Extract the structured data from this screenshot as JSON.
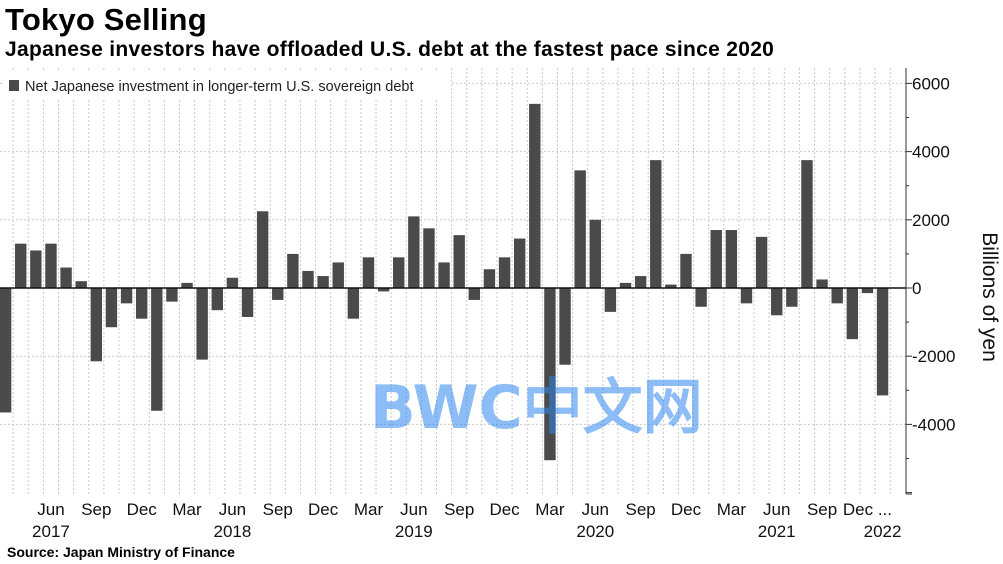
{
  "title": "Tokyo Selling",
  "subtitle": "Japanese investors have offloaded U.S. debt at the fastest pace since 2020",
  "source": "Source: Japan Ministry of Finance",
  "watermark": "BWC中文网",
  "colors": {
    "bar": "#4a4a4a",
    "grid": "#c8c8c8",
    "axis": "#333333"
  },
  "chart_data": {
    "type": "bar",
    "title": "Tokyo Selling",
    "subtitle": "Japanese investors have offloaded U.S. debt at the fastest pace since 2020",
    "ylabel": "Billions of yen",
    "ylim": [
      -6000,
      6000
    ],
    "yticks": [
      6000,
      4000,
      2000,
      0,
      -2000,
      -4000
    ],
    "grid": true,
    "legend_position": "top-left",
    "y_axis_side": "right",
    "series": [
      {
        "name": "Net Japanese investment in longer-term U.S. sovereign debt",
        "values": [
          -3650,
          1300,
          1100,
          1300,
          600,
          200,
          -2150,
          -1150,
          -450,
          -900,
          -3600,
          -400,
          150,
          -2100,
          -650,
          300,
          -850,
          2250,
          -350,
          1000,
          500,
          350,
          750,
          -900,
          900,
          -100,
          900,
          2100,
          1750,
          750,
          1550,
          -350,
          550,
          900,
          1450,
          5400,
          -5050,
          -2250,
          3450,
          2000,
          -700,
          150,
          350,
          3750,
          100,
          1000,
          -550,
          1700,
          1700,
          -450,
          1500,
          -800,
          -550,
          3750,
          250,
          -450,
          -1500,
          -150,
          -3150
        ]
      }
    ],
    "categories": [
      "Mar 2017",
      "Apr 2017",
      "May 2017",
      "Jun 2017",
      "Jul 2017",
      "Aug 2017",
      "Sep 2017",
      "Oct 2017",
      "Nov 2017",
      "Dec 2017",
      "Jan 2018",
      "Feb 2018",
      "Mar 2018",
      "Apr 2018",
      "May 2018",
      "Jun 2018",
      "Jul 2018",
      "Aug 2018",
      "Sep 2018",
      "Oct 2018",
      "Nov 2018",
      "Dec 2018",
      "Jan 2019",
      "Feb 2019",
      "Mar 2019",
      "Apr 2019",
      "May 2019",
      "Jun 2019",
      "Jul 2019",
      "Aug 2019",
      "Sep 2019",
      "Oct 2019",
      "Nov 2019",
      "Dec 2019",
      "Jan 2020",
      "Feb 2020",
      "Mar 2020",
      "Apr 2020",
      "May 2020",
      "Jun 2020",
      "Jul 2020",
      "Aug 2020",
      "Sep 2020",
      "Oct 2020",
      "Nov 2020",
      "Dec 2020",
      "Jan 2021",
      "Feb 2021",
      "Mar 2021",
      "Apr 2021",
      "May 2021",
      "Jun 2021",
      "Jul 2021",
      "Aug 2021",
      "Sep 2021",
      "Oct 2021",
      "Nov 2021",
      "Dec 2021",
      "Jan 2022"
    ],
    "x_tick_labels": [
      {
        "label": "Jun",
        "index": 3
      },
      {
        "label": "Sep",
        "index": 6
      },
      {
        "label": "Dec",
        "index": 9
      },
      {
        "label": "Mar",
        "index": 12
      },
      {
        "label": "Jun",
        "index": 15
      },
      {
        "label": "Sep",
        "index": 18
      },
      {
        "label": "Dec",
        "index": 21
      },
      {
        "label": "Mar",
        "index": 24
      },
      {
        "label": "Jun",
        "index": 27
      },
      {
        "label": "Sep",
        "index": 30
      },
      {
        "label": "Dec",
        "index": 33
      },
      {
        "label": "Mar",
        "index": 36
      },
      {
        "label": "Jun",
        "index": 39
      },
      {
        "label": "Sep",
        "index": 42
      },
      {
        "label": "Dec",
        "index": 45
      },
      {
        "label": "Mar",
        "index": 48
      },
      {
        "label": "Jun",
        "index": 51
      },
      {
        "label": "Sep",
        "index": 54
      },
      {
        "label": "Dec ...",
        "index": 57
      }
    ],
    "x_year_labels": [
      {
        "label": "2017",
        "index": 3
      },
      {
        "label": "2018",
        "index": 15
      },
      {
        "label": "2019",
        "index": 27
      },
      {
        "label": "2020",
        "index": 39
      },
      {
        "label": "2021",
        "index": 51
      },
      {
        "label": "2022",
        "index": 58
      }
    ]
  }
}
